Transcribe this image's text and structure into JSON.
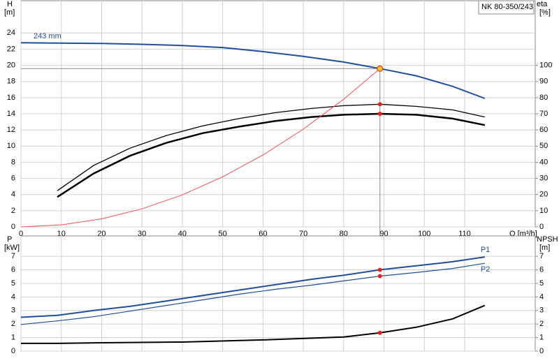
{
  "chart_data": [
    {
      "type": "line",
      "title": "NK 80-350/243",
      "ylabel": "H",
      "yunit": "[m]",
      "y2label": "eta",
      "y2unit": "[%]",
      "xlabel": "Q [m³/h]",
      "xlim": [
        0,
        127.5
      ],
      "xticks": [
        0,
        10,
        20,
        30,
        40,
        50,
        60,
        70,
        80,
        90,
        100,
        110
      ],
      "xtick_labels": true,
      "ylim": [
        0,
        28
      ],
      "yticks": [
        0,
        2,
        4,
        6,
        8,
        10,
        12,
        14,
        16,
        18,
        20,
        22,
        24
      ],
      "y2lim": [
        0,
        140
      ],
      "y2ticks": [
        0,
        10,
        20,
        30,
        40,
        50,
        60,
        70,
        80,
        90,
        100
      ],
      "grid": true,
      "series": [
        {
          "name": "243 mm",
          "label_at": "start",
          "color": "#1f4f9a",
          "width": 2,
          "x": [
            0,
            9,
            20,
            30,
            40,
            50,
            60,
            70,
            80,
            89,
            98,
            107,
            115
          ],
          "values": [
            22.8,
            22.75,
            22.7,
            22.6,
            22.45,
            22.2,
            21.7,
            21.1,
            20.4,
            19.6,
            18.7,
            17.4,
            15.9
          ]
        },
        {
          "color": "#000000",
          "width": 1.3,
          "axis": "y2",
          "x": [
            9,
            18,
            27,
            36,
            45,
            54,
            63,
            72,
            80,
            89,
            98,
            107,
            115
          ],
          "values": [
            22.4,
            38,
            48.7,
            56.5,
            62.5,
            67,
            70.7,
            73.3,
            75,
            75.9,
            74.6,
            72.4,
            68
          ]
        },
        {
          "color": "#000000",
          "width": 2.5,
          "axis": "y2",
          "x": [
            9,
            18,
            27,
            36,
            45,
            54,
            63,
            72,
            80,
            89,
            98,
            107,
            115
          ],
          "values": [
            18.5,
            33,
            44,
            52,
            58,
            62,
            65.5,
            68,
            69.4,
            70,
            69.4,
            67,
            63
          ]
        },
        {
          "color": "#f05050",
          "width": 1,
          "x": [
            0,
            10,
            20,
            30,
            40,
            50,
            60,
            70,
            80,
            89
          ],
          "values": [
            0,
            0.25,
            0.99,
            2.23,
            3.96,
            6.19,
            8.9,
            12.1,
            15.8,
            19.6
          ]
        }
      ],
      "points": [
        {
          "x": 89,
          "y": 19.6,
          "color": "#f5c518",
          "guide": true
        },
        {
          "x": 89,
          "y": 75.9,
          "axis": "y2",
          "color": "#e8221b"
        },
        {
          "x": 89,
          "y": 70,
          "axis": "y2",
          "color": "#e8221b"
        }
      ]
    },
    {
      "type": "line",
      "ylabel": "P",
      "yunit": "[kW]",
      "y2label": "NPSH",
      "y2unit": "[m]",
      "xlim": [
        0,
        127.5
      ],
      "xticks": [
        0,
        10,
        20,
        30,
        40,
        50,
        60,
        70,
        80,
        90,
        100,
        110
      ],
      "xtick_labels": false,
      "ylim": [
        0,
        8.5
      ],
      "yticks": [
        0,
        1,
        2,
        3,
        4,
        5,
        6,
        7
      ],
      "y2lim": [
        0,
        8.5
      ],
      "y2ticks": [
        0,
        1,
        2,
        3,
        4,
        5,
        6,
        7
      ],
      "grid": true,
      "series": [
        {
          "name": "P1",
          "label_at": "end",
          "color": "#1f4f9a",
          "width": 2,
          "x": [
            0,
            9,
            18,
            27,
            36,
            45,
            54,
            63,
            72,
            80,
            89,
            98,
            107,
            115
          ],
          "values": [
            2.5,
            2.64,
            3.0,
            3.3,
            3.7,
            4.1,
            4.5,
            4.9,
            5.3,
            5.6,
            6.0,
            6.3,
            6.6,
            6.95
          ]
        },
        {
          "name": "P2",
          "label_at": "end",
          "color": "#1f4f9a",
          "width": 1.2,
          "x": [
            0,
            9,
            18,
            27,
            36,
            45,
            54,
            63,
            72,
            80,
            89,
            98,
            107,
            115
          ],
          "values": [
            1.97,
            2.23,
            2.54,
            2.95,
            3.37,
            3.78,
            4.2,
            4.56,
            4.87,
            5.18,
            5.54,
            5.8,
            6.1,
            6.48
          ]
        },
        {
          "color": "#000000",
          "width": 2,
          "axis": "y2",
          "x": [
            0,
            9,
            20,
            40,
            60,
            80,
            89,
            98,
            107,
            115
          ],
          "values": [
            0.57,
            0.57,
            0.62,
            0.67,
            0.83,
            1.04,
            1.35,
            1.76,
            2.38,
            3.37
          ]
        }
      ],
      "points": [
        {
          "x": 89,
          "y": 6.0,
          "color": "#e8221b"
        },
        {
          "x": 89,
          "y": 5.54,
          "color": "#e8221b"
        },
        {
          "x": 89,
          "y": 1.35,
          "axis": "y2",
          "color": "#e8221b"
        }
      ]
    }
  ]
}
